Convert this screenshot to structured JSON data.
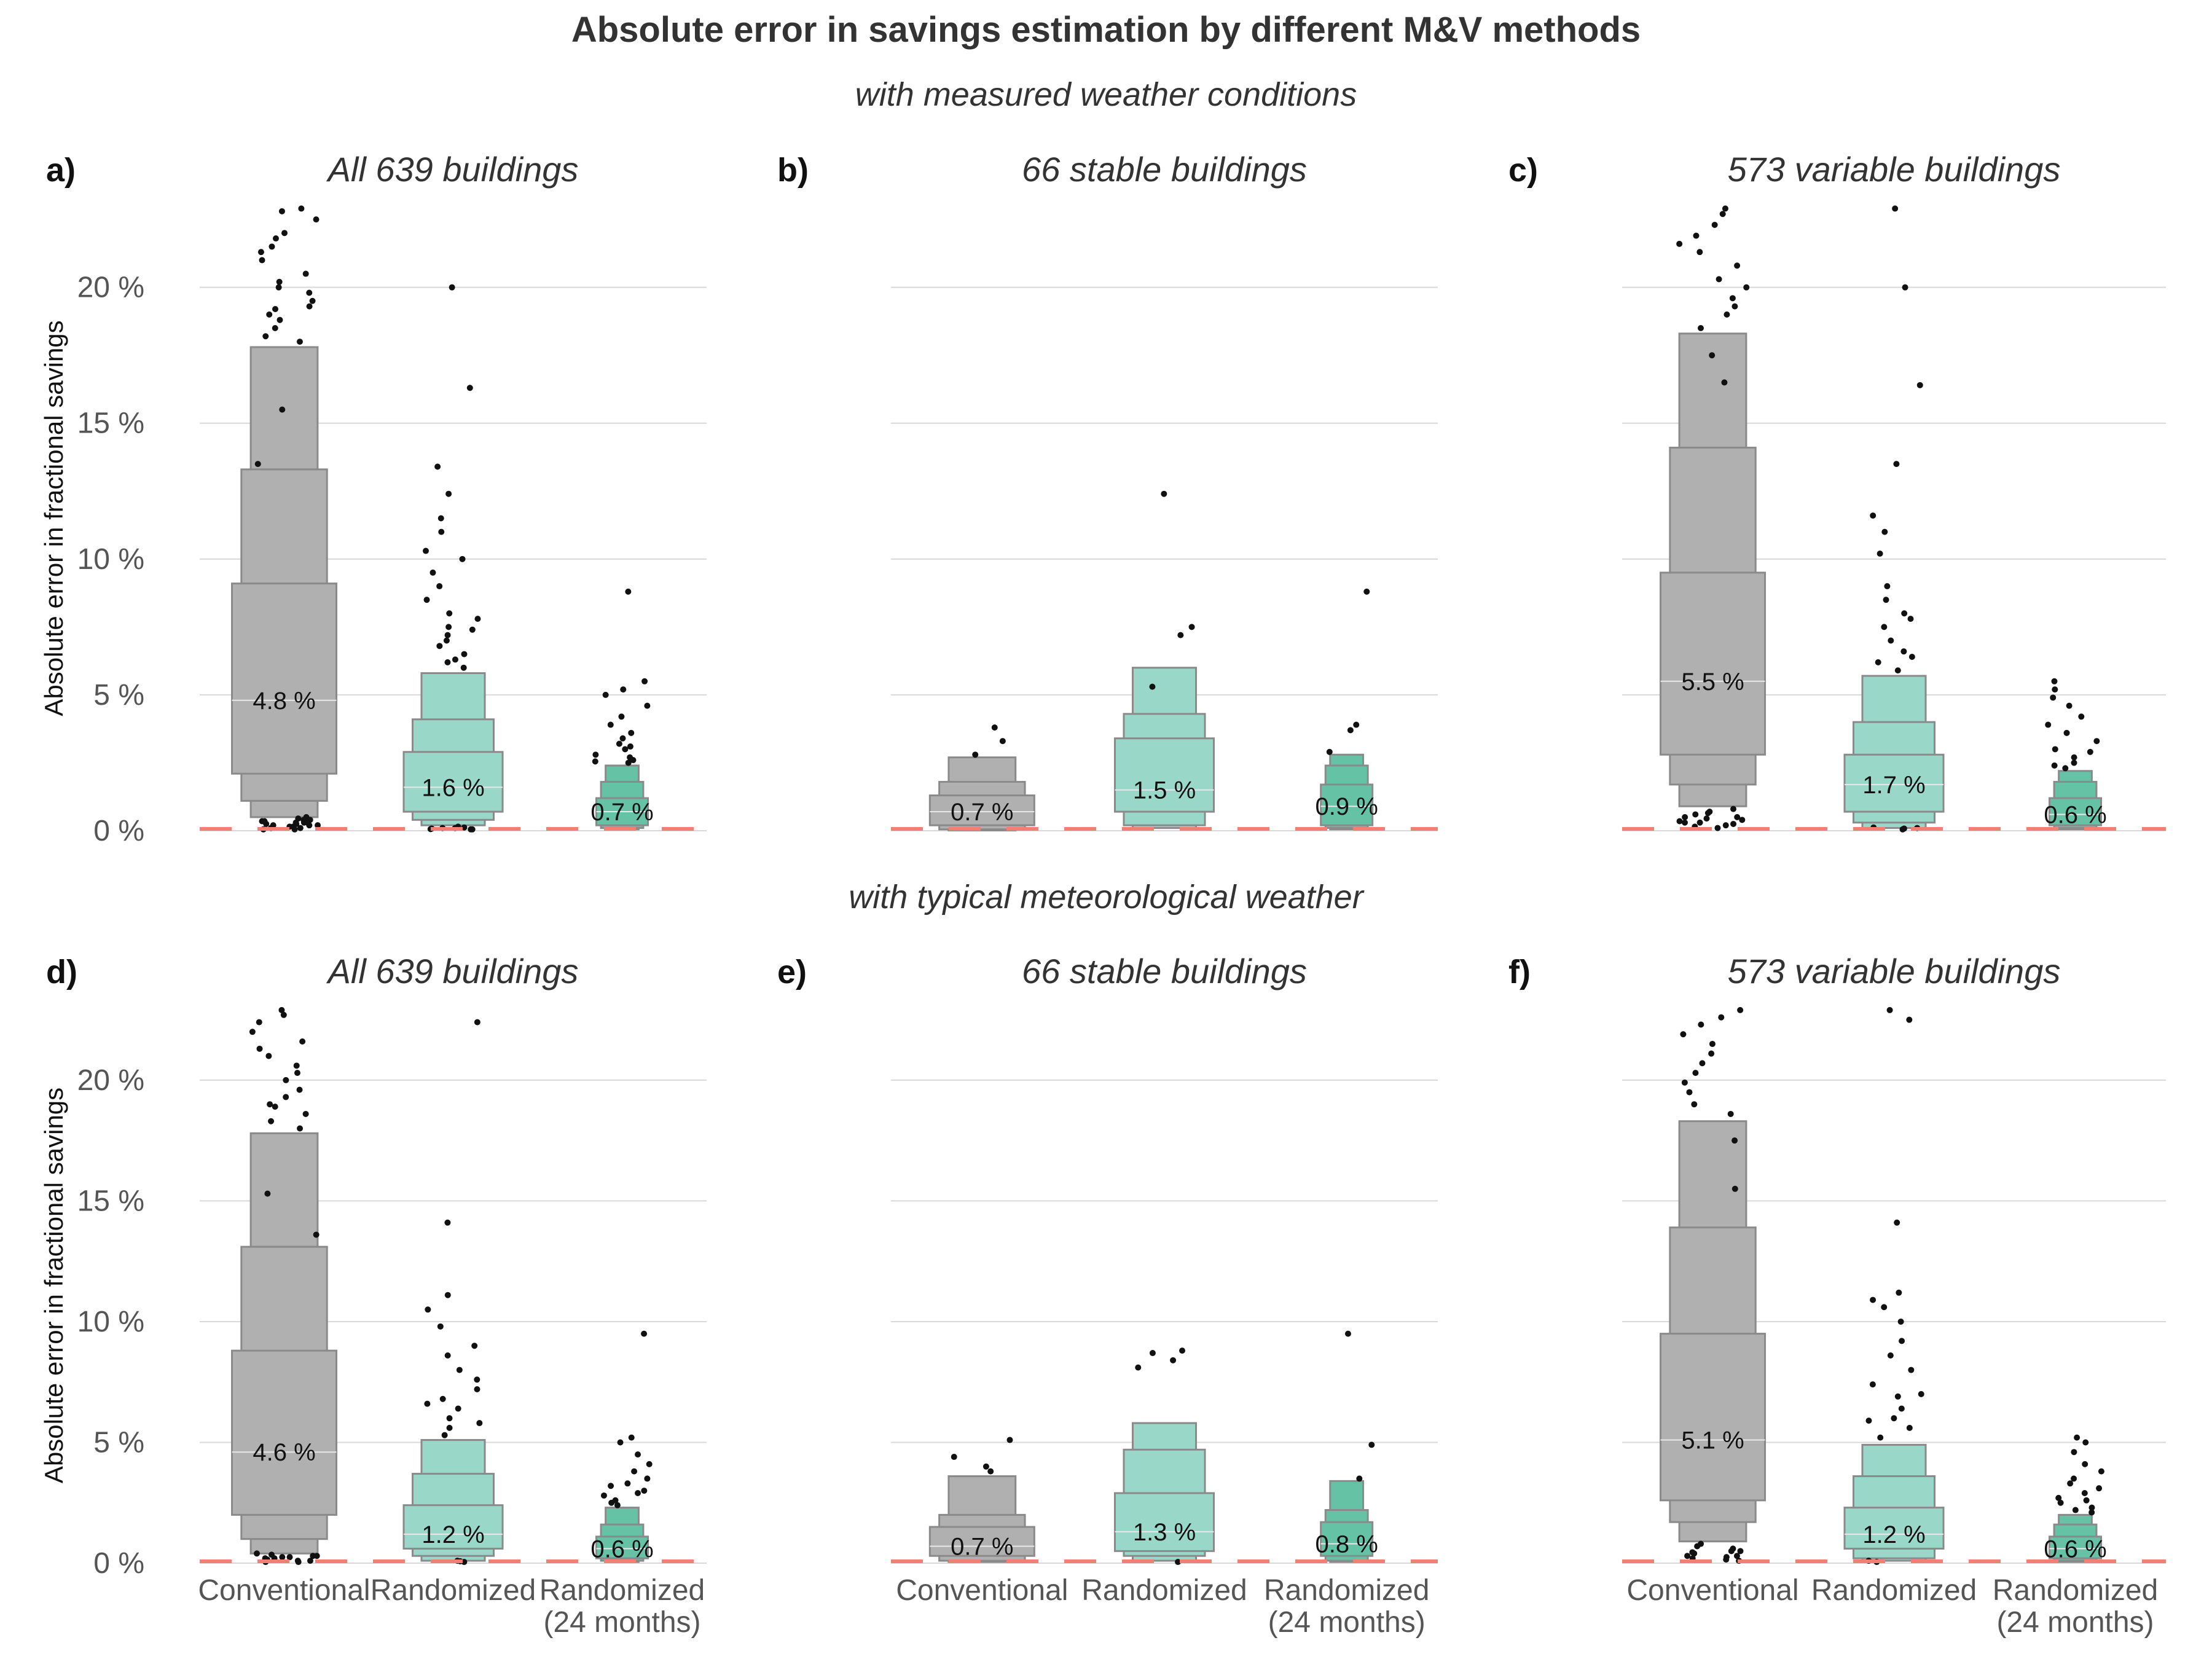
{
  "title": "Absolute error in savings estimation by different M&V methods",
  "sections": [
    {
      "subtitle": "with measured weather conditions"
    },
    {
      "subtitle": "with typical meteorological weather"
    }
  ],
  "colors": {
    "Conventional": "#b0b0b0",
    "Randomized": "#99d8c9",
    "Randomized (24 months)": "#66c2a5",
    "outline": "#8a8a8a",
    "reference_line": "#f08070",
    "grid": "#d9d9d9",
    "points": "#111111"
  },
  "chart_data": [
    {
      "panel": "a)",
      "title": "All 639 buildings",
      "type": "letter-value boxplot",
      "ylabel": "Absolute error in fractional savings",
      "ylim": [
        0,
        23
      ],
      "y_ticks": [
        "0 %",
        "5 %",
        "10 %",
        "15 %",
        "20 %"
      ],
      "categories": [
        "Conventional",
        "Randomized",
        "Randomized (24 months)"
      ],
      "series": [
        {
          "category": "Conventional",
          "median": 4.8,
          "median_label": "4.8 %",
          "levels": [
            [
              2.1,
              9.1
            ],
            [
              1.1,
              13.3
            ],
            [
              0.5,
              17.8
            ]
          ],
          "outliers": [
            0.05,
            0.1,
            0.15,
            0.2,
            0.25,
            0.3,
            0.35,
            0.4,
            0.45,
            0.5,
            0.1,
            0.2,
            0.3,
            0.05,
            0.15,
            0.25,
            0.35,
            0.4,
            0.2,
            0.3,
            13.5,
            15.5,
            18.0,
            18.5,
            19.0,
            19.2,
            19.5,
            19.8,
            20.0,
            20.2,
            20.5,
            21.0,
            21.3,
            21.5,
            21.8,
            22.0,
            22.5,
            22.8,
            22.9,
            18.2,
            18.8,
            19.3
          ]
        },
        {
          "category": "Randomized",
          "median": 1.6,
          "median_label": "1.6 %",
          "levels": [
            [
              0.7,
              2.9
            ],
            [
              0.4,
              4.1
            ],
            [
              0.2,
              5.8
            ]
          ],
          "outliers": [
            0.05,
            0.1,
            0.1,
            0.05,
            0.12,
            0.08,
            0.15,
            0.06,
            6.0,
            6.2,
            6.5,
            6.8,
            7.0,
            7.2,
            7.5,
            7.8,
            8.0,
            8.5,
            9.0,
            9.5,
            10.0,
            10.3,
            11.0,
            11.5,
            12.4,
            13.4,
            16.3,
            20.0,
            6.3,
            7.4
          ]
        },
        {
          "category": "Randomized (24 months)",
          "median": 0.7,
          "median_label": "0.7 %",
          "levels": [
            [
              0.2,
              1.2
            ],
            [
              0.1,
              1.8
            ],
            [
              0.05,
              2.4
            ]
          ],
          "outliers": [
            2.5,
            2.6,
            2.8,
            3.0,
            3.2,
            3.4,
            3.6,
            3.9,
            4.2,
            4.6,
            5.0,
            5.2,
            5.5,
            8.8,
            2.55,
            2.7,
            3.1
          ]
        }
      ]
    },
    {
      "panel": "b)",
      "title": "66 stable buildings",
      "type": "letter-value boxplot",
      "ylim": [
        0,
        23
      ],
      "categories": [
        "Conventional",
        "Randomized",
        "Randomized (24 months)"
      ],
      "series": [
        {
          "category": "Conventional",
          "median": 0.7,
          "median_label": "0.7 %",
          "levels": [
            [
              0.2,
              1.3
            ],
            [
              0.05,
              1.8
            ],
            [
              0.01,
              2.7
            ]
          ],
          "outliers": [
            2.8,
            3.3,
            3.8
          ]
        },
        {
          "category": "Randomized",
          "median": 1.5,
          "median_label": "1.5 %",
          "levels": [
            [
              0.7,
              3.4
            ],
            [
              0.2,
              4.3
            ],
            [
              0.1,
              6.0
            ]
          ],
          "outliers": [
            5.3,
            7.2,
            7.5,
            12.4
          ]
        },
        {
          "category": "Randomized (24 months)",
          "median": 0.9,
          "median_label": "0.9 %",
          "levels": [
            [
              0.2,
              1.7
            ],
            [
              0.1,
              2.4
            ],
            [
              0.05,
              2.8
            ]
          ],
          "outliers": [
            2.9,
            3.7,
            3.9,
            8.8
          ]
        }
      ]
    },
    {
      "panel": "c)",
      "title": "573 variable buildings",
      "type": "letter-value boxplot",
      "ylim": [
        0,
        23
      ],
      "categories": [
        "Conventional",
        "Randomized",
        "Randomized (24 months)"
      ],
      "series": [
        {
          "category": "Conventional",
          "median": 5.5,
          "median_label": "5.5 %",
          "levels": [
            [
              2.8,
              9.5
            ],
            [
              1.7,
              14.1
            ],
            [
              0.9,
              18.3
            ]
          ],
          "outliers": [
            0.1,
            0.2,
            0.3,
            0.4,
            0.5,
            0.6,
            0.7,
            0.8,
            0.3,
            0.5,
            0.15,
            0.25,
            0.45,
            0.65,
            0.35,
            18.5,
            19.0,
            19.3,
            19.6,
            20.0,
            20.3,
            20.8,
            21.3,
            21.6,
            21.9,
            22.3,
            22.7,
            22.9,
            16.5,
            17.5
          ]
        },
        {
          "category": "Randomized",
          "median": 1.7,
          "median_label": "1.7 %",
          "levels": [
            [
              0.7,
              2.8
            ],
            [
              0.3,
              4.0
            ],
            [
              0.1,
              5.7
            ]
          ],
          "outliers": [
            0.05,
            0.1,
            0.08,
            0.12,
            5.9,
            6.2,
            6.6,
            7.0,
            7.5,
            8.0,
            8.5,
            9.0,
            10.2,
            11.0,
            11.6,
            13.5,
            16.4,
            20.0,
            22.9,
            6.4,
            7.8
          ]
        },
        {
          "category": "Randomized (24 months)",
          "median": 0.6,
          "median_label": "0.6 %",
          "levels": [
            [
              0.2,
              1.2
            ],
            [
              0.1,
              1.8
            ],
            [
              0.05,
              2.2
            ]
          ],
          "outliers": [
            2.3,
            2.5,
            2.7,
            3.0,
            3.3,
            3.6,
            3.9,
            4.2,
            4.6,
            4.9,
            5.2,
            5.5,
            2.4,
            2.9
          ]
        }
      ]
    },
    {
      "panel": "d)",
      "title": "All 639 buildings",
      "type": "letter-value boxplot",
      "ylabel": "Absolute error in fractional savings",
      "ylim": [
        0,
        23
      ],
      "y_ticks": [
        "0 %",
        "5 %",
        "10 %",
        "15 %",
        "20 %"
      ],
      "categories": [
        "Conventional",
        "Randomized",
        "Randomized\n(24 months)"
      ],
      "series": [
        {
          "category": "Conventional",
          "median": 4.6,
          "median_label": "4.6 %",
          "levels": [
            [
              2.0,
              8.8
            ],
            [
              1.0,
              13.1
            ],
            [
              0.4,
              17.8
            ]
          ],
          "outliers": [
            0.05,
            0.1,
            0.15,
            0.2,
            0.25,
            0.3,
            0.35,
            0.4,
            0.1,
            0.2,
            0.3,
            0.05,
            0.15,
            0.25,
            13.6,
            15.3,
            18.0,
            18.3,
            18.6,
            19.0,
            19.3,
            19.6,
            20.0,
            20.3,
            20.6,
            21.0,
            21.3,
            21.6,
            22.0,
            22.4,
            22.7,
            22.9,
            18.9
          ]
        },
        {
          "category": "Randomized",
          "median": 1.2,
          "median_label": "1.2 %",
          "levels": [
            [
              0.6,
              2.4
            ],
            [
              0.3,
              3.7
            ],
            [
              0.1,
              5.1
            ]
          ],
          "outliers": [
            0.05,
            0.08,
            0.1,
            5.3,
            5.6,
            6.0,
            6.4,
            6.8,
            7.2,
            7.6,
            8.0,
            8.6,
            9.0,
            9.8,
            10.5,
            11.1,
            14.1,
            22.4,
            5.8,
            6.6
          ]
        },
        {
          "category": "Randomized (24 months)",
          "median": 0.6,
          "median_label": "0.6 %",
          "levels": [
            [
              0.2,
              1.1
            ],
            [
              0.1,
              1.6
            ],
            [
              0.05,
              2.3
            ]
          ],
          "outliers": [
            2.4,
            2.6,
            2.8,
            3.0,
            3.2,
            3.5,
            3.8,
            4.1,
            4.5,
            5.0,
            5.2,
            9.5,
            2.5,
            2.9,
            3.3
          ]
        }
      ]
    },
    {
      "panel": "e)",
      "title": "66 stable buildings",
      "type": "letter-value boxplot",
      "ylim": [
        0,
        23
      ],
      "categories": [
        "Conventional",
        "Randomized",
        "Randomized\n(24 months)"
      ],
      "series": [
        {
          "category": "Conventional",
          "median": 0.7,
          "median_label": "0.7 %",
          "levels": [
            [
              0.3,
              1.5
            ],
            [
              0.1,
              2.0
            ],
            [
              0.05,
              3.6
            ]
          ],
          "outliers": [
            3.8,
            4.0,
            4.4,
            5.1
          ]
        },
        {
          "category": "Randomized",
          "median": 1.3,
          "median_label": "1.3 %",
          "levels": [
            [
              0.5,
              2.9
            ],
            [
              0.3,
              4.7
            ],
            [
              0.1,
              5.8
            ]
          ],
          "outliers": [
            0.05,
            8.1,
            8.4,
            8.7,
            8.8
          ]
        },
        {
          "category": "Randomized (24 months)",
          "median": 0.8,
          "median_label": "0.8 %",
          "levels": [
            [
              0.3,
              1.7
            ],
            [
              0.1,
              2.2
            ],
            [
              0.05,
              3.4
            ]
          ],
          "outliers": [
            3.5,
            4.9,
            9.5
          ]
        }
      ]
    },
    {
      "panel": "f)",
      "title": "573 variable buildings",
      "type": "letter-value boxplot",
      "ylim": [
        0,
        23
      ],
      "categories": [
        "Conventional",
        "Randomized",
        "Randomized\n(24 months)"
      ],
      "series": [
        {
          "category": "Conventional",
          "median": 5.1,
          "median_label": "5.1 %",
          "levels": [
            [
              2.6,
              9.5
            ],
            [
              1.7,
              13.9
            ],
            [
              0.9,
              18.3
            ]
          ],
          "outliers": [
            0.1,
            0.2,
            0.3,
            0.4,
            0.5,
            0.6,
            0.7,
            0.8,
            0.3,
            0.5,
            0.15,
            0.25,
            0.45,
            15.5,
            17.5,
            18.6,
            19.0,
            19.5,
            19.9,
            20.3,
            20.7,
            21.1,
            21.5,
            21.9,
            22.3,
            22.6,
            22.9
          ]
        },
        {
          "category": "Randomized",
          "median": 1.2,
          "median_label": "1.2 %",
          "levels": [
            [
              0.6,
              2.3
            ],
            [
              0.2,
              3.6
            ],
            [
              0.1,
              4.9
            ]
          ],
          "outliers": [
            0.05,
            0.1,
            5.2,
            5.6,
            6.0,
            6.4,
            6.9,
            7.4,
            8.0,
            8.6,
            9.2,
            10.0,
            10.6,
            10.9,
            11.2,
            14.1,
            22.5,
            22.9,
            5.9,
            7.0
          ]
        },
        {
          "category": "Randomized (24 months)",
          "median": 0.6,
          "median_label": "0.6 %",
          "levels": [
            [
              0.2,
              1.1
            ],
            [
              0.1,
              1.6
            ],
            [
              0.05,
              2.0
            ]
          ],
          "outliers": [
            2.1,
            2.3,
            2.5,
            2.7,
            2.9,
            3.1,
            3.3,
            3.5,
            3.8,
            4.1,
            4.6,
            5.0,
            5.2,
            2.2,
            2.6
          ]
        }
      ]
    }
  ]
}
